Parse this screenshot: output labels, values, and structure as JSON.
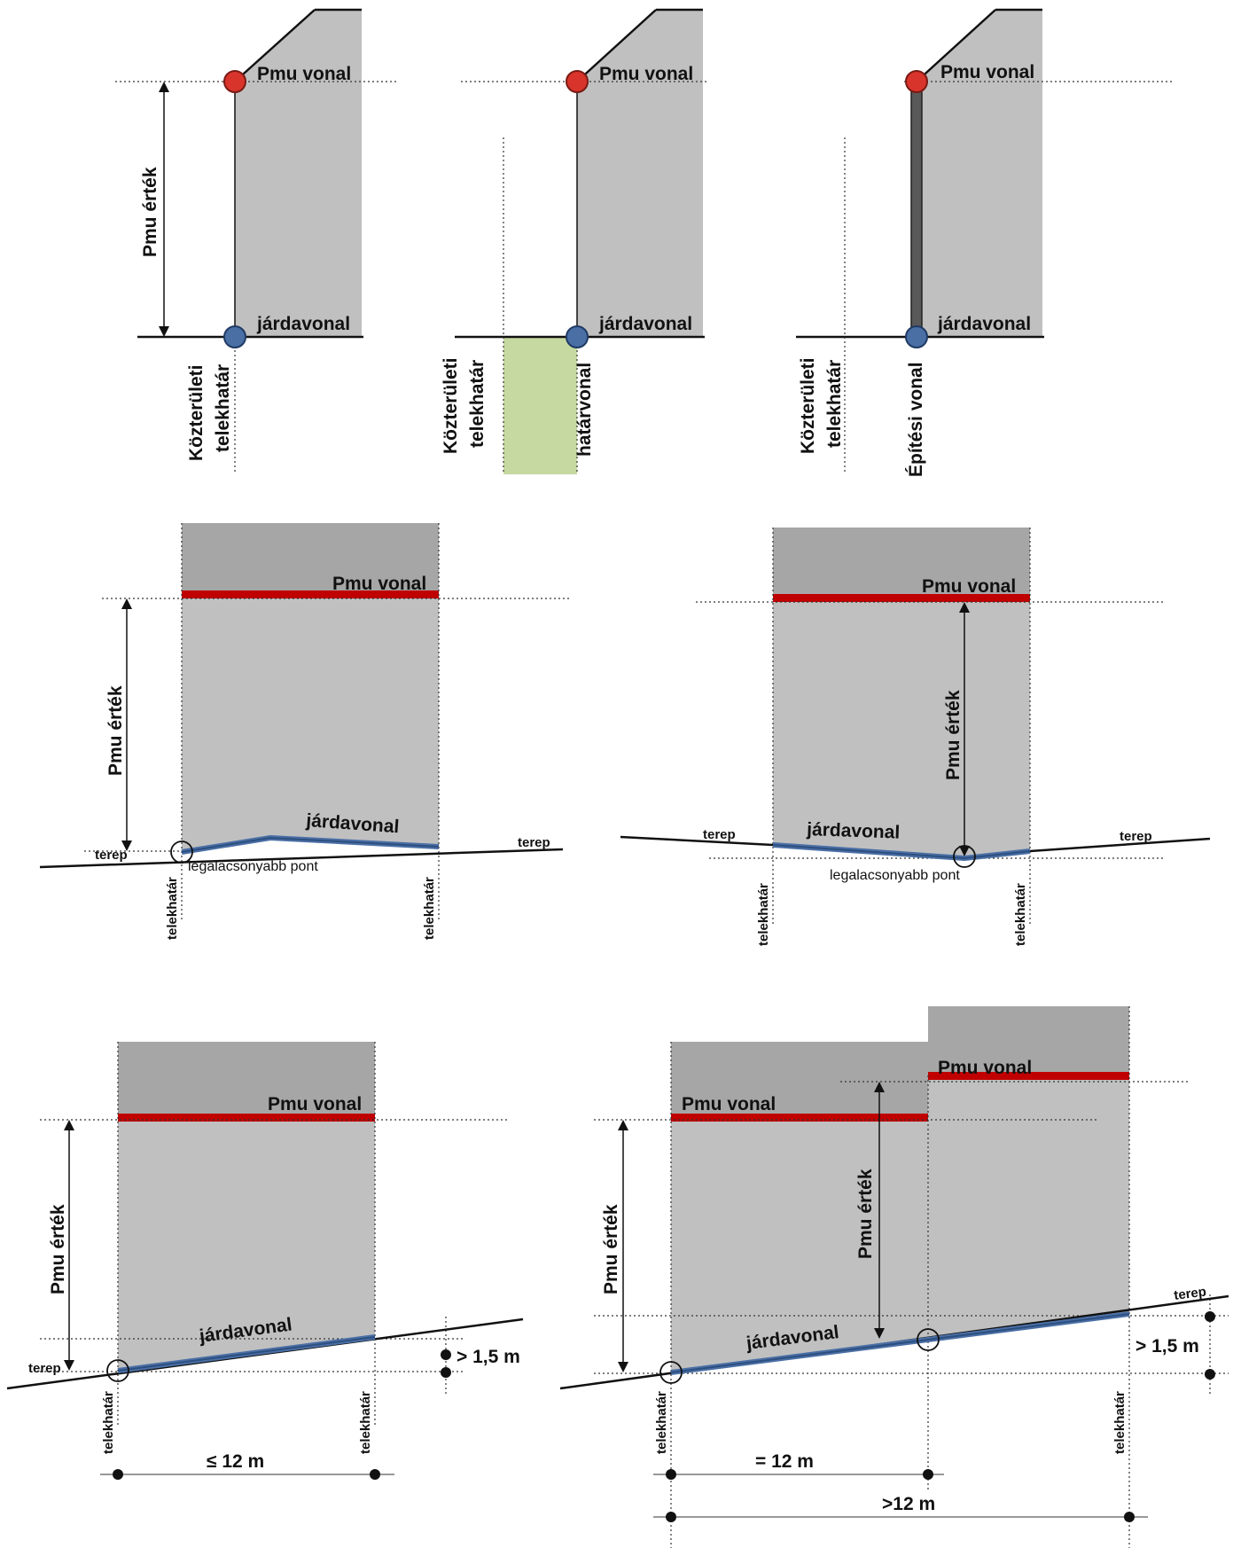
{
  "labels": {
    "pmu_vonal": "Pmu vonal",
    "jardavonal": "járdavonal",
    "pmu_ertek": "Pmu érték",
    "kozteruleti": "Közterületi",
    "telekhatar_word": "telekhatár",
    "hatarvonal": "határvonal",
    "epitesi_vonal": "Építési vonal",
    "telekhatar": "telekhatár",
    "terep": "terep",
    "legalacsonyabb_pont": "legalacsonyabb pont",
    "gt_1_5_m": "> 1,5 m",
    "le_12_m": "≤ 12 m",
    "eq_12_m": "= 12 m",
    "gt_12_m": ">12 m"
  },
  "colors": {
    "building": "#c0c0c0",
    "building_upper": "#a6a6a6",
    "pmu_line": "#c00000",
    "jarda_line": "#4a6fa5",
    "green_strip": "#c5d9a0",
    "wall": "#595959"
  }
}
